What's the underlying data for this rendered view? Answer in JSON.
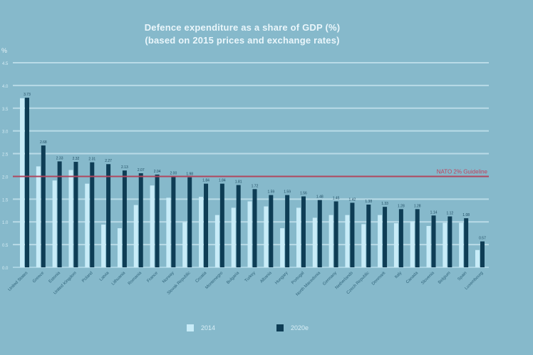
{
  "title": {
    "line1": "Defence expenditure as a share of GDP (%)",
    "line2": "(based on 2015 prices and exchange rates)"
  },
  "colors": {
    "background": "#86b9cb",
    "gridline": "#b9dbe7",
    "series_2014": "#c8ecf8",
    "series_2020": "#0e3d55",
    "guideline": "#b0465e",
    "guideline_text": "#c0415c"
  },
  "chart_data": {
    "type": "bar",
    "title": "Defence expenditure as a share of GDP (%) (based on 2015 prices and exchange rates)",
    "ylabel": "%",
    "xlabel": "",
    "ylim": [
      0,
      4.5
    ],
    "yticks": [
      0,
      0.5,
      1.0,
      1.5,
      2.0,
      2.5,
      3.0,
      3.5,
      4.0,
      4.5
    ],
    "grid": true,
    "legend_position": "bottom-center",
    "categories": [
      "United States",
      "Greece",
      "Estonia",
      "United Kingdom",
      "Poland",
      "Latvia",
      "Lithuania",
      "Romania",
      "France",
      "Norway",
      "Slovak Republic",
      "Croatia",
      "Montenegro",
      "Bulgaria",
      "Turkey",
      "Albania",
      "Hungary",
      "Portugal",
      "North Macedonia",
      "Germany",
      "Netherlands",
      "Czech Republic",
      "Denmark",
      "Italy",
      "Canada",
      "Slovenia",
      "Belgium",
      "Spain",
      "Luxembourg"
    ],
    "series": [
      {
        "name": "2014",
        "values": [
          3.72,
          2.22,
          1.91,
          2.14,
          1.84,
          0.94,
          0.86,
          1.37,
          1.8,
          1.53,
          0.99,
          1.55,
          1.15,
          1.31,
          1.45,
          1.34,
          0.86,
          1.31,
          1.09,
          1.15,
          1.15,
          0.95,
          1.15,
          0.97,
          1.01,
          0.91,
          0.98,
          0.98,
          0.38
        ]
      },
      {
        "name": "2020e",
        "values": [
          3.73,
          2.68,
          2.33,
          2.32,
          2.31,
          2.27,
          2.13,
          2.07,
          2.04,
          2.0,
          1.98,
          1.84,
          1.84,
          1.81,
          1.72,
          1.59,
          1.59,
          1.56,
          1.48,
          1.45,
          1.42,
          1.38,
          1.33,
          1.28,
          1.28,
          1.14,
          1.12,
          1.08,
          0.57
        ]
      }
    ],
    "data_labels_series": "2020e",
    "annotations": [
      {
        "type": "hline",
        "y": 2.0,
        "label": "NATO 2% Guideline"
      }
    ]
  },
  "legend": [
    {
      "label": "2014"
    },
    {
      "label": "2020e"
    }
  ]
}
